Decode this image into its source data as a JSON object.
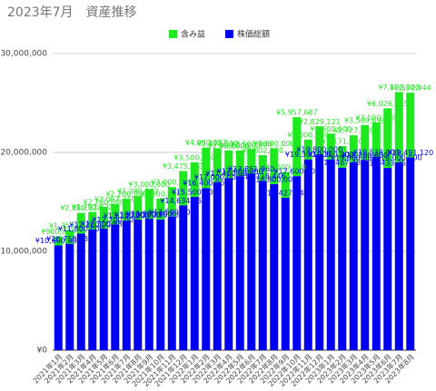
{
  "chart_data": {
    "type": "stacked_bar",
    "title": "2023年7月　資産推移",
    "categories": [
      "2021年1月",
      "2021年2月",
      "2021年3月",
      "2021年4月",
      "2021年5月",
      "2021年6月",
      "2021年7月",
      "2021年8月",
      "2021年9月",
      "2021年10月",
      "2021年11月",
      "2021年12月",
      "2022年1月",
      "2022年2月",
      "2022年3月",
      "2022年4月",
      "2022年5月",
      "2022年6月",
      "2022年7月",
      "2022年8月",
      "2022年9月",
      "2022年10月",
      "2022年11月",
      "2022年12月",
      "2023年1月",
      "2023年2月",
      "2023年3月",
      "2023年4月",
      "2023年5月",
      "2023年6月",
      "2023年7月",
      "2023年8月"
    ],
    "series": [
      {
        "name": "含み益",
        "color": "#1ee81e",
        "values": [
          900000,
          1355616,
          2080834,
          1792822,
          2200000,
          2067310,
          2200000,
          2380542,
          3000000,
          2100000,
          3000000,
          3475063,
          3500000,
          4090337,
          3400000,
          2800000,
          2600000,
          2500000,
          2602250,
          3600000,
          2600000,
          5957687,
          2000000,
          2829121,
          2600000,
          2171020,
          2727790,
          3569893,
          3500000,
          6026555,
          7100000,
          6552944
        ],
        "value_labels": [
          "¥900,000",
          "¥1,355,616",
          "¥2,080,834",
          "¥1,792,822",
          "¥2,200,000",
          "¥2,067,310",
          "¥2,200,000",
          "¥2,380,542",
          "¥3,000,000",
          "¥2,100,000",
          "¥3,000,000",
          "¥3,475,063",
          "¥3,500,000",
          "¥4,090,337",
          "¥3,400,000",
          "¥2,800,000",
          "¥2,600,000",
          "¥2,500,000",
          "¥2,602,250",
          "¥3,600,000",
          "¥2,600,000",
          "¥5,957,687",
          "¥2,000,000",
          "¥2,829,121",
          "¥2,600,000",
          "¥2,171,020",
          "¥2,727,790",
          "¥3,569,893",
          "¥3,500,000",
          "¥6,026,555",
          "¥7,100,000",
          "¥6,552,944"
        ]
      },
      {
        "name": "株価総額",
        "color": "#0000f0",
        "values": [
          10600000,
          10758937,
          11800000,
          12200000,
          12300888,
          12700000,
          13100000,
          13200000,
          13300000,
          13215884,
          13500000,
          14634556,
          15500000,
          16400000,
          17000000,
          17400000,
          17600000,
          17851960,
          17118446,
          16800000,
          15427440,
          17600000,
          19300000,
          19800000,
          19300000,
          18467483,
          19000000,
          19200000,
          19538000,
          18433257,
          19000000,
          19491120
        ],
        "value_labels": [
          "¥10,600,000",
          "¥10,758,937",
          "¥11,800,000",
          "¥12,200,000",
          "¥12,300,888",
          "¥12,700,000",
          "¥13,100,000",
          "¥13,200,000",
          "¥13,300,000",
          "¥13,215,884",
          "¥13,500,000",
          "¥14,634,556",
          "¥15,500,000",
          "¥16,400,000",
          "¥17,000,000",
          "¥17,400,000",
          "¥17,600,000",
          "¥17,851,960",
          "¥17,118,446",
          "¥16,800,000",
          "¥15,427,440",
          "¥17,600,000",
          "¥19,300,000",
          "¥19,800,000",
          "¥19,300,000",
          "¥18,467,483",
          "¥19,000,000",
          "¥19,200,000",
          "¥19,538,000",
          "¥18,433,257",
          "¥19,000,000",
          "¥19,491,120"
        ]
      }
    ],
    "ylim": [
      0,
      30000000
    ],
    "yticks": [
      {
        "value": 0,
        "label": "¥0"
      },
      {
        "value": 10000000,
        "label": "¥10,000,000"
      },
      {
        "value": 20000000,
        "label": "¥20,000,000"
      },
      {
        "value": 30000000,
        "label": "¥30,000,000"
      }
    ],
    "grid": true,
    "legend": "top"
  }
}
